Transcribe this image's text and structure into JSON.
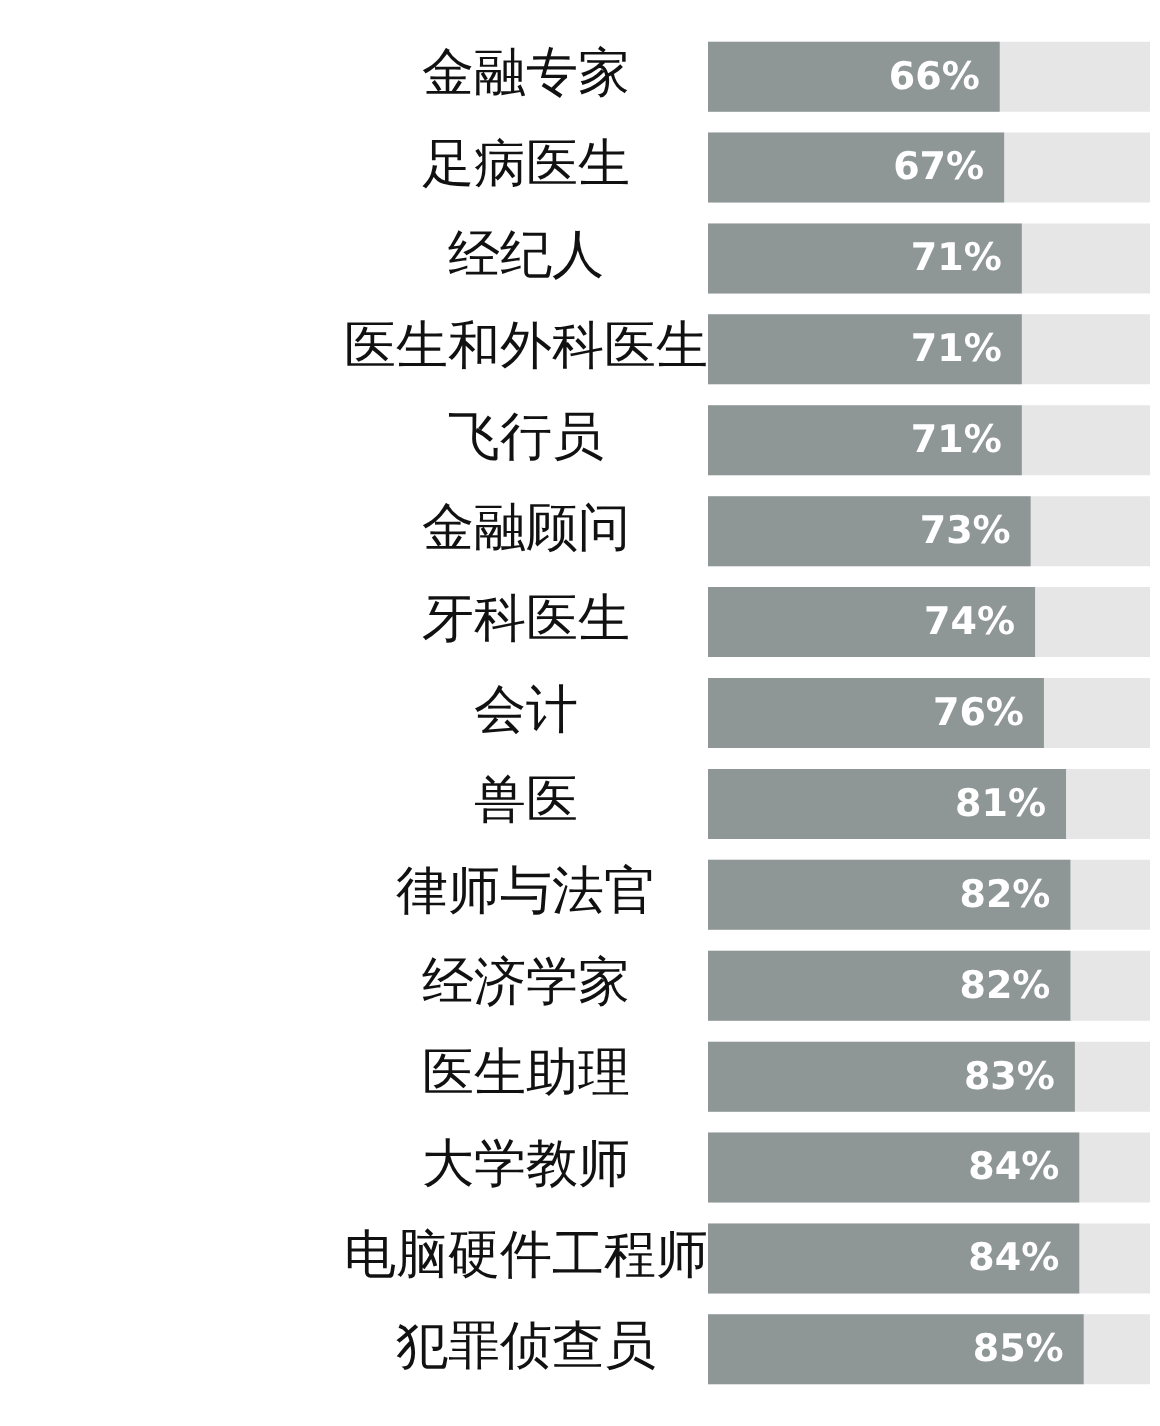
{
  "chart_data": {
    "type": "bar",
    "orientation": "horizontal",
    "categories": [
      "金融专家",
      "足病医生",
      "经纪人",
      "医生和外科医生",
      "飞行员",
      "金融顾问",
      "牙科医生",
      "会计",
      "兽医",
      "律师与法官",
      "经济学家",
      "医生助理",
      "大学教师",
      "电脑硬件工程师",
      "犯罪侦查员"
    ],
    "values": [
      66,
      67,
      71,
      71,
      71,
      73,
      74,
      76,
      81,
      82,
      82,
      83,
      84,
      84,
      85
    ],
    "color": "#8f9696",
    "xlim": [
      0,
      100
    ],
    "value_labels": [
      "66%",
      "67%",
      "71%",
      "71%",
      "71%",
      "73%",
      "74%",
      "76%",
      "81%",
      "82%",
      "82%",
      "83%",
      "84%",
      "84%",
      "85%"
    ],
    "tick_labels": "y"
  }
}
